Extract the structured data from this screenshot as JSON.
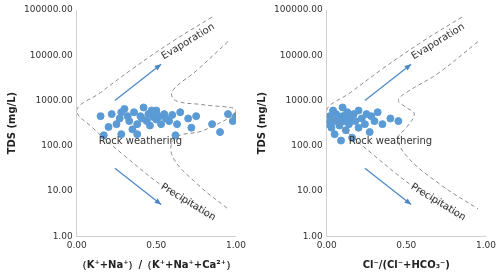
{
  "chart_data": [
    {
      "type": "scatter",
      "x_label": "（K⁺+Na⁺）/（K⁺+Na⁺+Ca²⁺）",
      "y_label": "TDS (mg/L)",
      "log": "y",
      "grid": false,
      "color": "#5b9bd5",
      "marker": "circle",
      "xlim": [
        0,
        1
      ],
      "xticks": [
        {
          "value": 0,
          "label": "0.00"
        },
        {
          "value": 0.5,
          "label": "0.50"
        },
        {
          "value": 1,
          "label": "1.00"
        }
      ],
      "ylim": [
        1,
        100000
      ],
      "yticks": [
        {
          "value": 1,
          "label": "1.00"
        },
        {
          "value": 10,
          "label": "10.00"
        },
        {
          "value": 100,
          "label": "100.00"
        },
        {
          "value": 1000,
          "label": "1000.00"
        },
        {
          "value": 10000,
          "label": "10000.00"
        },
        {
          "value": 100000,
          "label": "100000.00"
        }
      ],
      "x": [
        0.17,
        0.2,
        0.22,
        0.25,
        0.27,
        0.28,
        0.3,
        0.32,
        0.33,
        0.35,
        0.36,
        0.38,
        0.4,
        0.41,
        0.42,
        0.44,
        0.45,
        0.46,
        0.48,
        0.5,
        0.5,
        0.52,
        0.53,
        0.55,
        0.56,
        0.58,
        0.6,
        0.62,
        0.63,
        0.65,
        0.7,
        0.72,
        0.75,
        0.85,
        0.9,
        0.95,
        0.98,
        1.0,
        0.28,
        0.15,
        0.38,
        0.47
      ],
      "values": [
        170,
        260,
        500,
        300,
        400,
        180,
        650,
        450,
        350,
        230,
        550,
        300,
        450,
        400,
        700,
        350,
        500,
        280,
        430,
        380,
        600,
        450,
        300,
        500,
        400,
        350,
        480,
        170,
        300,
        550,
        400,
        250,
        450,
        300,
        200,
        500,
        350,
        450,
        550,
        450,
        180,
        600
      ],
      "boundary": [
        [
          [
            0.85,
            70000
          ],
          [
            0.6,
            20000
          ],
          [
            0.35,
            5000
          ],
          [
            0.15,
            1500
          ],
          [
            0,
            600
          ],
          [
            0.1,
            250
          ],
          [
            0.3,
            60
          ],
          [
            0.55,
            12
          ],
          [
            0.85,
            2.5
          ]
        ],
        [
          [
            0.95,
            20000
          ],
          [
            0.75,
            4500
          ],
          [
            0.6,
            1600
          ],
          [
            0.62,
            1000
          ],
          [
            0.8,
            800
          ],
          [
            1.0,
            600
          ],
          [
            0.8,
            220
          ],
          [
            0.62,
            150
          ],
          [
            0.6,
            60
          ],
          [
            0.75,
            15
          ],
          [
            0.95,
            4
          ]
        ]
      ],
      "annotations": {
        "upper": "Evaporation",
        "middle": "Rock weathering",
        "lower": "Precipitation"
      }
    },
    {
      "type": "scatter",
      "x_label": "Cl⁻/(Cl⁻+HCO₃⁻)",
      "y_label": "TDS (mg/L)",
      "log": "y",
      "grid": false,
      "color": "#5b9bd5",
      "marker": "circle",
      "xlim": [
        0,
        1
      ],
      "xticks": [
        {
          "value": 0,
          "label": "0.00"
        },
        {
          "value": 0.5,
          "label": "0.50"
        },
        {
          "value": 1,
          "label": "1.00"
        }
      ],
      "ylim": [
        1,
        100000
      ],
      "yticks": [
        {
          "value": 1,
          "label": "1.00"
        },
        {
          "value": 10,
          "label": "10.00"
        },
        {
          "value": 100,
          "label": "100.00"
        },
        {
          "value": 1000,
          "label": "1000.00"
        },
        {
          "value": 10000,
          "label": "10000.00"
        },
        {
          "value": 100000,
          "label": "100000.00"
        }
      ],
      "x": [
        0.01,
        0.02,
        0.03,
        0.04,
        0.05,
        0.05,
        0.06,
        0.07,
        0.08,
        0.09,
        0.1,
        0.1,
        0.11,
        0.12,
        0.13,
        0.14,
        0.15,
        0.16,
        0.17,
        0.18,
        0.2,
        0.2,
        0.22,
        0.24,
        0.25,
        0.27,
        0.28,
        0.3,
        0.32,
        0.35,
        0.4,
        0.45,
        0.02,
        0.08,
        0.12
      ],
      "values": [
        300,
        450,
        250,
        600,
        350,
        180,
        500,
        400,
        280,
        130,
        450,
        700,
        350,
        220,
        550,
        300,
        400,
        150,
        500,
        350,
        250,
        600,
        400,
        300,
        500,
        200,
        450,
        350,
        550,
        300,
        400,
        350,
        350,
        380,
        480
      ],
      "boundary": [
        [
          [
            0.85,
            70000
          ],
          [
            0.6,
            20000
          ],
          [
            0.35,
            5000
          ],
          [
            0.15,
            1500
          ],
          [
            0,
            600
          ],
          [
            0.1,
            250
          ],
          [
            0.3,
            60
          ],
          [
            0.55,
            12
          ],
          [
            0.85,
            2.5
          ]
        ],
        [
          [
            0.95,
            20000
          ],
          [
            0.7,
            4000
          ],
          [
            0.5,
            1500
          ],
          [
            0.45,
            1000
          ],
          [
            0.5,
            700
          ],
          [
            0.55,
            500
          ],
          [
            0.5,
            250
          ],
          [
            0.45,
            150
          ],
          [
            0.5,
            60
          ],
          [
            0.7,
            15
          ],
          [
            0.95,
            4
          ]
        ]
      ],
      "annotations": {
        "upper": "Evaporation",
        "middle": "Rock weathering",
        "lower": "Precipitation"
      }
    }
  ]
}
